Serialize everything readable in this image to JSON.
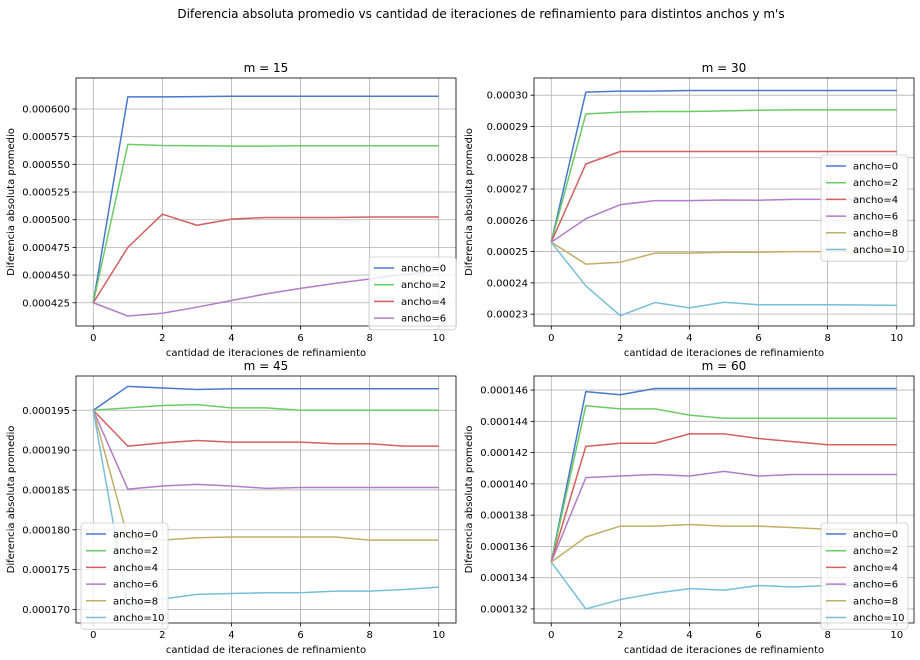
{
  "suptitle": "Diferencia absoluta promedio vs cantidad de iteraciones de refinamiento para distintos anchos y m's",
  "colors": {
    "ancho=0": "#4878cf",
    "ancho=2": "#6acc65",
    "ancho=4": "#d65f5f",
    "ancho=6": "#b47cc7",
    "ancho=8": "#c4ad66",
    "ancho=10": "#77bedb"
  },
  "chart_data": [
    {
      "type": "line",
      "title": "m = 15",
      "xlabel": "cantidad de iteraciones de refinamiento",
      "ylabel": "Diferencia absoluta promedio",
      "x": [
        0,
        1,
        2,
        3,
        4,
        5,
        6,
        7,
        8,
        9,
        10
      ],
      "xlim": [
        -0.5,
        10.5
      ],
      "ylim": [
        0.000404,
        0.000628
      ],
      "xticks": [
        "0",
        "2",
        "4",
        "6",
        "8",
        "10"
      ],
      "yticks": [
        "0.000425",
        "0.000450",
        "0.000475",
        "0.000500",
        "0.000525",
        "0.000550",
        "0.000575",
        "0.000600"
      ],
      "grid": true,
      "legend": "lower right",
      "series": [
        {
          "name": "ancho=0",
          "values": [
            0.000425,
            0.000611,
            0.000611,
            0.0006112,
            0.0006115,
            0.0006115,
            0.0006115,
            0.0006115,
            0.0006115,
            0.0006115,
            0.0006115
          ]
        },
        {
          "name": "ancho=2",
          "values": [
            0.000425,
            0.000568,
            0.000567,
            0.0005668,
            0.0005665,
            0.0005665,
            0.0005668,
            0.0005668,
            0.0005668,
            0.0005668,
            0.0005668
          ]
        },
        {
          "name": "ancho=4",
          "values": [
            0.000425,
            0.000475,
            0.000505,
            0.000495,
            0.0005005,
            0.000502,
            0.000502,
            0.000502,
            0.0005025,
            0.0005025,
            0.0005025
          ]
        },
        {
          "name": "ancho=6",
          "values": [
            0.000425,
            0.000413,
            0.0004155,
            0.000421,
            0.000427,
            0.000433,
            0.000438,
            0.0004425,
            0.0004465,
            0.0004505,
            0.000454
          ]
        }
      ]
    },
    {
      "type": "line",
      "title": "m = 30",
      "xlabel": "cantidad de iteraciones de refinamiento",
      "ylabel": "Diferencia absoluta promedio",
      "x": [
        0,
        1,
        2,
        3,
        4,
        5,
        6,
        7,
        8,
        9,
        10
      ],
      "xlim": [
        -0.5,
        10.5
      ],
      "ylim": [
        0.0002262,
        0.0003055
      ],
      "xticks": [
        "0",
        "2",
        "4",
        "6",
        "8",
        "10"
      ],
      "yticks": [
        "0.00023",
        "0.00024",
        "0.00025",
        "0.00026",
        "0.00027",
        "0.00028",
        "0.00029",
        "0.00030"
      ],
      "grid": true,
      "legend": "center right",
      "series": [
        {
          "name": "ancho=0",
          "values": [
            0.000253,
            0.000301,
            0.0003013,
            0.0003013,
            0.0003015,
            0.0003015,
            0.0003015,
            0.0003015,
            0.0003015,
            0.0003015,
            0.0003015
          ]
        },
        {
          "name": "ancho=2",
          "values": [
            0.000253,
            0.000294,
            0.0002946,
            0.0002948,
            0.0002948,
            0.000295,
            0.0002952,
            0.0002953,
            0.0002953,
            0.0002953,
            0.0002953
          ]
        },
        {
          "name": "ancho=4",
          "values": [
            0.000253,
            0.000278,
            0.000282,
            0.000282,
            0.000282,
            0.000282,
            0.000282,
            0.000282,
            0.000282,
            0.000282,
            0.000282
          ]
        },
        {
          "name": "ancho=6",
          "values": [
            0.000253,
            0.0002605,
            0.000265,
            0.0002663,
            0.0002663,
            0.0002665,
            0.0002664,
            0.0002667,
            0.0002667,
            0.0002667,
            0.0002667
          ]
        },
        {
          "name": "ancho=8",
          "values": [
            0.000253,
            0.000246,
            0.0002466,
            0.0002495,
            0.0002495,
            0.0002498,
            0.0002498,
            0.00025,
            0.00025,
            0.00025,
            0.00025
          ]
        },
        {
          "name": "ancho=10",
          "values": [
            0.000253,
            0.000239,
            0.0002295,
            0.0002337,
            0.000232,
            0.0002338,
            0.000233,
            0.000233,
            0.000233,
            0.0002329,
            0.0002328
          ]
        }
      ]
    },
    {
      "type": "line",
      "title": "m = 45",
      "xlabel": "cantidad de iteraciones de refinamiento",
      "ylabel": "Diferencia absoluta promedio",
      "x": [
        0,
        1,
        2,
        3,
        4,
        5,
        6,
        7,
        8,
        9,
        10
      ],
      "xlim": [
        -0.5,
        10.5
      ],
      "ylim": [
        0.0001683,
        0.0001993
      ],
      "xticks": [
        "0",
        "2",
        "4",
        "6",
        "8",
        "10"
      ],
      "yticks": [
        "0.000170",
        "0.000175",
        "0.000180",
        "0.000185",
        "0.000190",
        "0.000195"
      ],
      "grid": true,
      "legend": "lower left",
      "series": [
        {
          "name": "ancho=0",
          "values": [
            0.000195,
            0.000198,
            0.0001978,
            0.0001976,
            0.0001977,
            0.0001977,
            0.0001977,
            0.0001977,
            0.0001977,
            0.0001977,
            0.0001977
          ]
        },
        {
          "name": "ancho=2",
          "values": [
            0.000195,
            0.0001953,
            0.0001956,
            0.0001957,
            0.0001953,
            0.0001953,
            0.000195,
            0.000195,
            0.000195,
            0.000195,
            0.000195
          ]
        },
        {
          "name": "ancho=4",
          "values": [
            0.000195,
            0.0001905,
            0.0001909,
            0.0001912,
            0.000191,
            0.000191,
            0.000191,
            0.0001908,
            0.0001908,
            0.0001905,
            0.0001905
          ]
        },
        {
          "name": "ancho=6",
          "values": [
            0.000195,
            0.0001851,
            0.0001855,
            0.0001857,
            0.0001855,
            0.0001852,
            0.0001853,
            0.0001853,
            0.0001853,
            0.0001853,
            0.0001853
          ]
        },
        {
          "name": "ancho=8",
          "values": [
            0.000195,
            0.000179,
            0.0001787,
            0.000179,
            0.0001791,
            0.0001791,
            0.0001791,
            0.0001791,
            0.0001787,
            0.0001787,
            0.0001787
          ]
        },
        {
          "name": "ancho=10",
          "values": [
            0.000195,
            0.0001705,
            0.0001713,
            0.0001719,
            0.000172,
            0.0001721,
            0.0001721,
            0.0001723,
            0.0001723,
            0.0001725,
            0.0001728
          ]
        }
      ]
    },
    {
      "type": "line",
      "title": "m = 60",
      "xlabel": "cantidad de iteraciones de refinamiento",
      "ylabel": "Diferencia absoluta promedio",
      "x": [
        0,
        1,
        2,
        3,
        4,
        5,
        6,
        7,
        8,
        9,
        10
      ],
      "xlim": [
        -0.5,
        10.5
      ],
      "ylim": [
        0.0001311,
        0.0001469
      ],
      "xticks": [
        "0",
        "2",
        "4",
        "6",
        "8",
        "10"
      ],
      "yticks": [
        "0.000132",
        "0.000134",
        "0.000136",
        "0.000138",
        "0.000140",
        "0.000142",
        "0.000144",
        "0.000146"
      ],
      "grid": true,
      "legend": "lower right",
      "series": [
        {
          "name": "ancho=0",
          "values": [
            0.000135,
            0.0001459,
            0.0001457,
            0.0001461,
            0.0001461,
            0.0001461,
            0.0001461,
            0.0001461,
            0.0001461,
            0.0001461,
            0.0001461
          ]
        },
        {
          "name": "ancho=2",
          "values": [
            0.000135,
            0.000145,
            0.0001448,
            0.0001448,
            0.0001444,
            0.0001442,
            0.0001442,
            0.0001442,
            0.0001442,
            0.0001442,
            0.0001442
          ]
        },
        {
          "name": "ancho=4",
          "values": [
            0.000135,
            0.0001424,
            0.0001426,
            0.0001426,
            0.0001432,
            0.0001432,
            0.0001429,
            0.0001427,
            0.0001425,
            0.0001425,
            0.0001425
          ]
        },
        {
          "name": "ancho=6",
          "values": [
            0.000135,
            0.0001404,
            0.0001405,
            0.0001406,
            0.0001405,
            0.0001408,
            0.0001405,
            0.0001406,
            0.0001406,
            0.0001406,
            0.0001406
          ]
        },
        {
          "name": "ancho=8",
          "values": [
            0.000135,
            0.0001366,
            0.0001373,
            0.0001373,
            0.0001374,
            0.0001373,
            0.0001373,
            0.0001372,
            0.0001371,
            0.0001371,
            0.000137
          ]
        },
        {
          "name": "ancho=10",
          "values": [
            0.000135,
            0.000132,
            0.0001326,
            0.000133,
            0.0001333,
            0.0001332,
            0.0001335,
            0.0001334,
            0.0001335,
            0.0001335,
            0.0001336
          ]
        }
      ]
    }
  ]
}
